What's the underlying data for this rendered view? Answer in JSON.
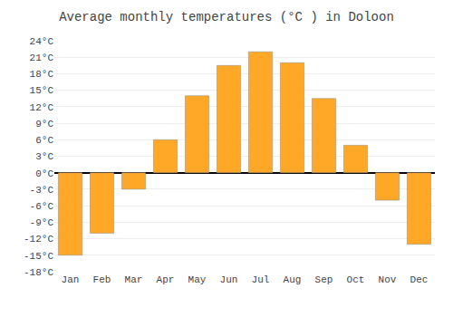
{
  "chart_data": {
    "type": "bar",
    "title": "Average monthly temperatures (°C ) in Doloon",
    "categories": [
      "Jan",
      "Feb",
      "Mar",
      "Apr",
      "May",
      "Jun",
      "Jul",
      "Aug",
      "Sep",
      "Oct",
      "Nov",
      "Dec"
    ],
    "values": [
      -15,
      -11,
      -3,
      6,
      14,
      19.5,
      22,
      20,
      13.5,
      5,
      -5,
      -13
    ],
    "color": "#FFA726",
    "ylim": [
      -18,
      24
    ],
    "yticks": [
      {
        "value": -18,
        "label": "-18°C"
      },
      {
        "value": -15,
        "label": "-15°C"
      },
      {
        "value": -12,
        "label": "-12°C"
      },
      {
        "value": -9,
        "label": "-9°C"
      },
      {
        "value": -6,
        "label": "-6°C"
      },
      {
        "value": -3,
        "label": "-3°C"
      },
      {
        "value": 0,
        "label": "0°C"
      },
      {
        "value": 3,
        "label": "3°C"
      },
      {
        "value": 6,
        "label": "6°C"
      },
      {
        "value": 9,
        "label": "9°C"
      },
      {
        "value": 12,
        "label": "12°C"
      },
      {
        "value": 15,
        "label": "15°C"
      },
      {
        "value": 18,
        "label": "18°C"
      },
      {
        "value": 21,
        "label": "21°C"
      },
      {
        "value": 24,
        "label": "24°C"
      }
    ],
    "grid": true
  }
}
